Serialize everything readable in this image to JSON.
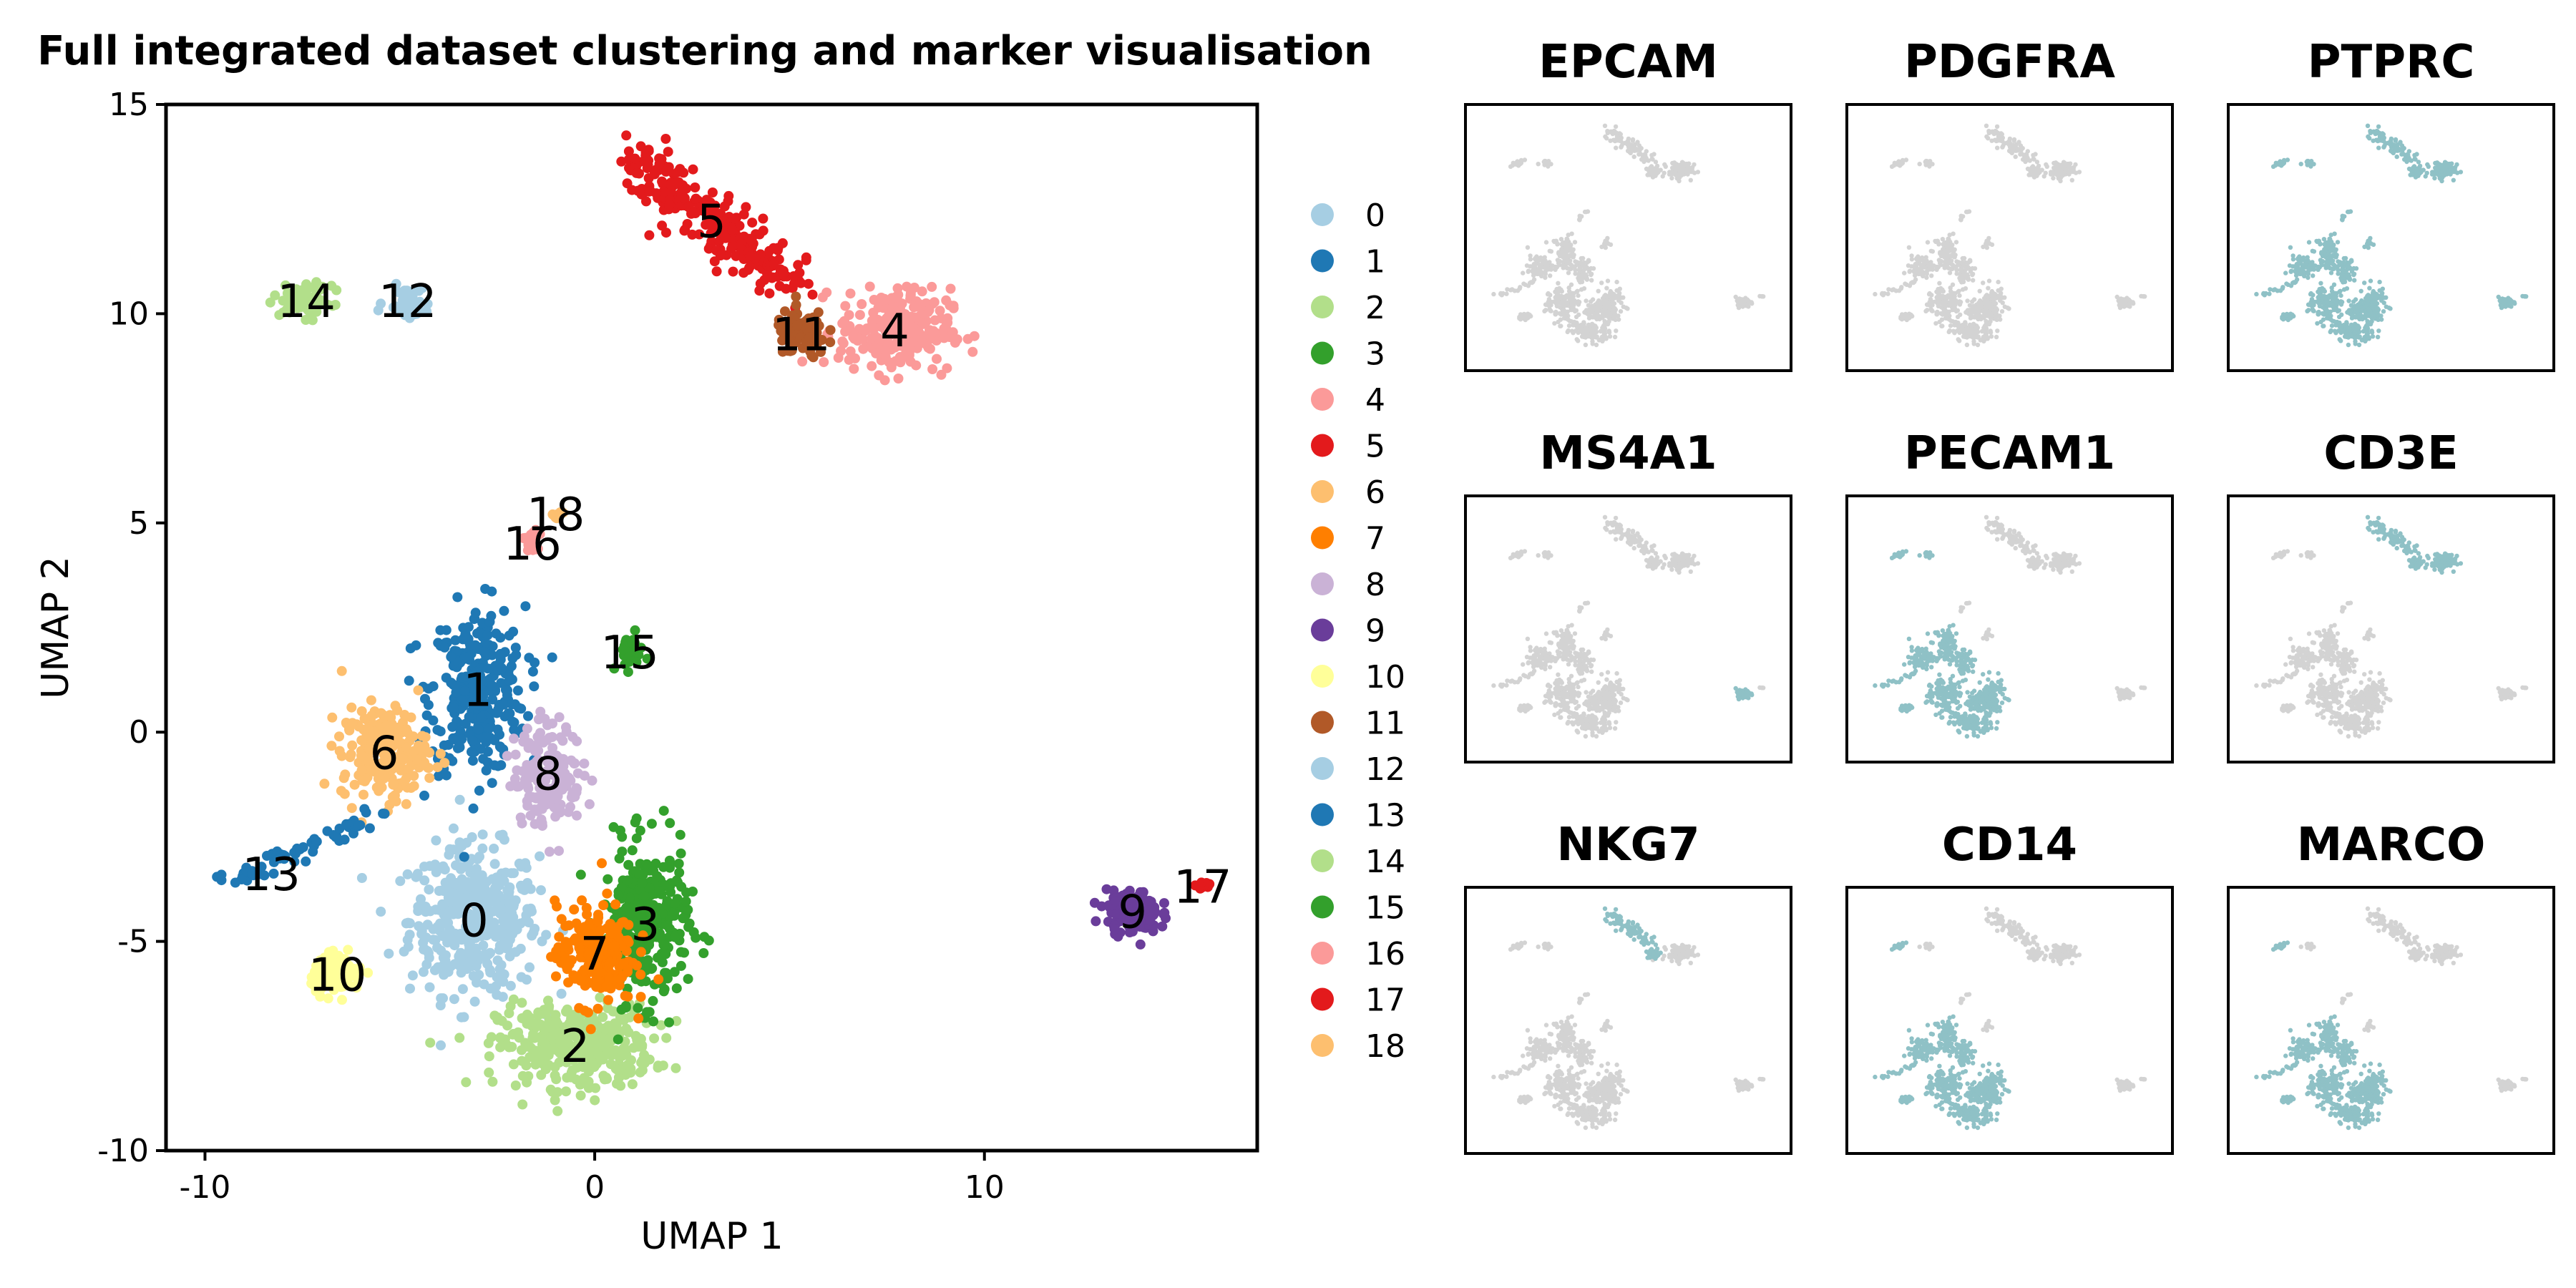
{
  "figure": {
    "title": "Full integrated dataset clustering and marker visualisation"
  },
  "chart_data": [
    {
      "type": "scatter",
      "title": "Full integrated dataset clustering and marker visualisation",
      "xlabel": "UMAP 1",
      "ylabel": "UMAP 2",
      "xlim": [
        -11,
        17
      ],
      "ylim": [
        -10,
        15
      ],
      "xticks": [
        -10,
        0,
        10
      ],
      "xtick_labels": [
        "-10",
        "0",
        "10"
      ],
      "yticks": [
        15,
        10,
        5,
        0,
        -5,
        -10
      ],
      "ytick_labels": [
        "15",
        "10",
        "5",
        "0",
        "-5",
        "-10"
      ],
      "grid": false,
      "legend_position": "right",
      "clusters": [
        {
          "name": "0",
          "color": "#a6cee3",
          "center": [
            -3.1,
            -4.5
          ]
        },
        {
          "name": "1",
          "color": "#1f78b4",
          "center": [
            -3.0,
            1.0
          ]
        },
        {
          "name": "2",
          "color": "#b2df8a",
          "center": [
            -0.5,
            -7.5
          ]
        },
        {
          "name": "3",
          "color": "#33a02c",
          "center": [
            1.3,
            -4.6
          ]
        },
        {
          "name": "4",
          "color": "#fb9a99",
          "center": [
            7.7,
            9.6
          ]
        },
        {
          "name": "5",
          "color": "#e31a1c",
          "center": [
            3.0,
            12.2
          ]
        },
        {
          "name": "6",
          "color": "#fdbf6f",
          "center": [
            -5.4,
            -0.5
          ]
        },
        {
          "name": "7",
          "color": "#ff7f00",
          "center": [
            0.0,
            -5.3
          ]
        },
        {
          "name": "8",
          "color": "#cab2d6",
          "center": [
            -1.2,
            -1.0
          ]
        },
        {
          "name": "9",
          "color": "#6a3d9a",
          "center": [
            13.8,
            -4.3
          ]
        },
        {
          "name": "10",
          "color": "#ffff99",
          "center": [
            -6.6,
            -5.8
          ]
        },
        {
          "name": "11",
          "color": "#b15928",
          "center": [
            5.3,
            9.5
          ]
        },
        {
          "name": "12",
          "color": "#a6cee3",
          "center": [
            -4.8,
            10.3
          ]
        },
        {
          "name": "13",
          "color": "#1f78b4",
          "center": [
            -8.3,
            -3.4
          ]
        },
        {
          "name": "14",
          "color": "#b2df8a",
          "center": [
            -7.4,
            10.3
          ]
        },
        {
          "name": "15",
          "color": "#33a02c",
          "center": [
            0.9,
            1.9
          ]
        },
        {
          "name": "16",
          "color": "#fb9a99",
          "center": [
            -1.6,
            4.5
          ]
        },
        {
          "name": "17",
          "color": "#e31a1c",
          "center": [
            15.6,
            -3.7
          ]
        },
        {
          "name": "18",
          "color": "#fdbf6f",
          "center": [
            -1.0,
            5.2
          ]
        }
      ]
    },
    {
      "type": "scatter",
      "panels": [
        {
          "title": "EPCAM",
          "highlight_clusters": []
        },
        {
          "title": "PDGFRA",
          "highlight_clusters": []
        },
        {
          "title": "PTPRC",
          "highlight_clusters": [
            "0",
            "1",
            "2",
            "3",
            "4",
            "5",
            "6",
            "7",
            "8",
            "10",
            "11",
            "12",
            "13",
            "14",
            "15",
            "16",
            "17",
            "18",
            "9"
          ]
        },
        {
          "title": "MS4A1",
          "highlight_clusters": [
            "9"
          ]
        },
        {
          "title": "PECAM1",
          "highlight_clusters": [
            "0",
            "1",
            "2",
            "3",
            "6",
            "7",
            "8",
            "10",
            "12",
            "13",
            "14"
          ]
        },
        {
          "title": "CD3E",
          "highlight_clusters": [
            "4",
            "5",
            "11"
          ]
        },
        {
          "title": "NKG7",
          "highlight_clusters": [
            "5",
            "11"
          ]
        },
        {
          "title": "CD14",
          "highlight_clusters": [
            "0",
            "1",
            "2",
            "3",
            "6",
            "7",
            "8",
            "10",
            "13",
            "14"
          ]
        },
        {
          "title": "MARCO",
          "highlight_clusters": [
            "0",
            "1",
            "2",
            "3",
            "6",
            "7",
            "8",
            "10",
            "13",
            "14"
          ]
        }
      ],
      "low_color": "#d3d3d3",
      "high_color": "#8fc1c6"
    }
  ]
}
